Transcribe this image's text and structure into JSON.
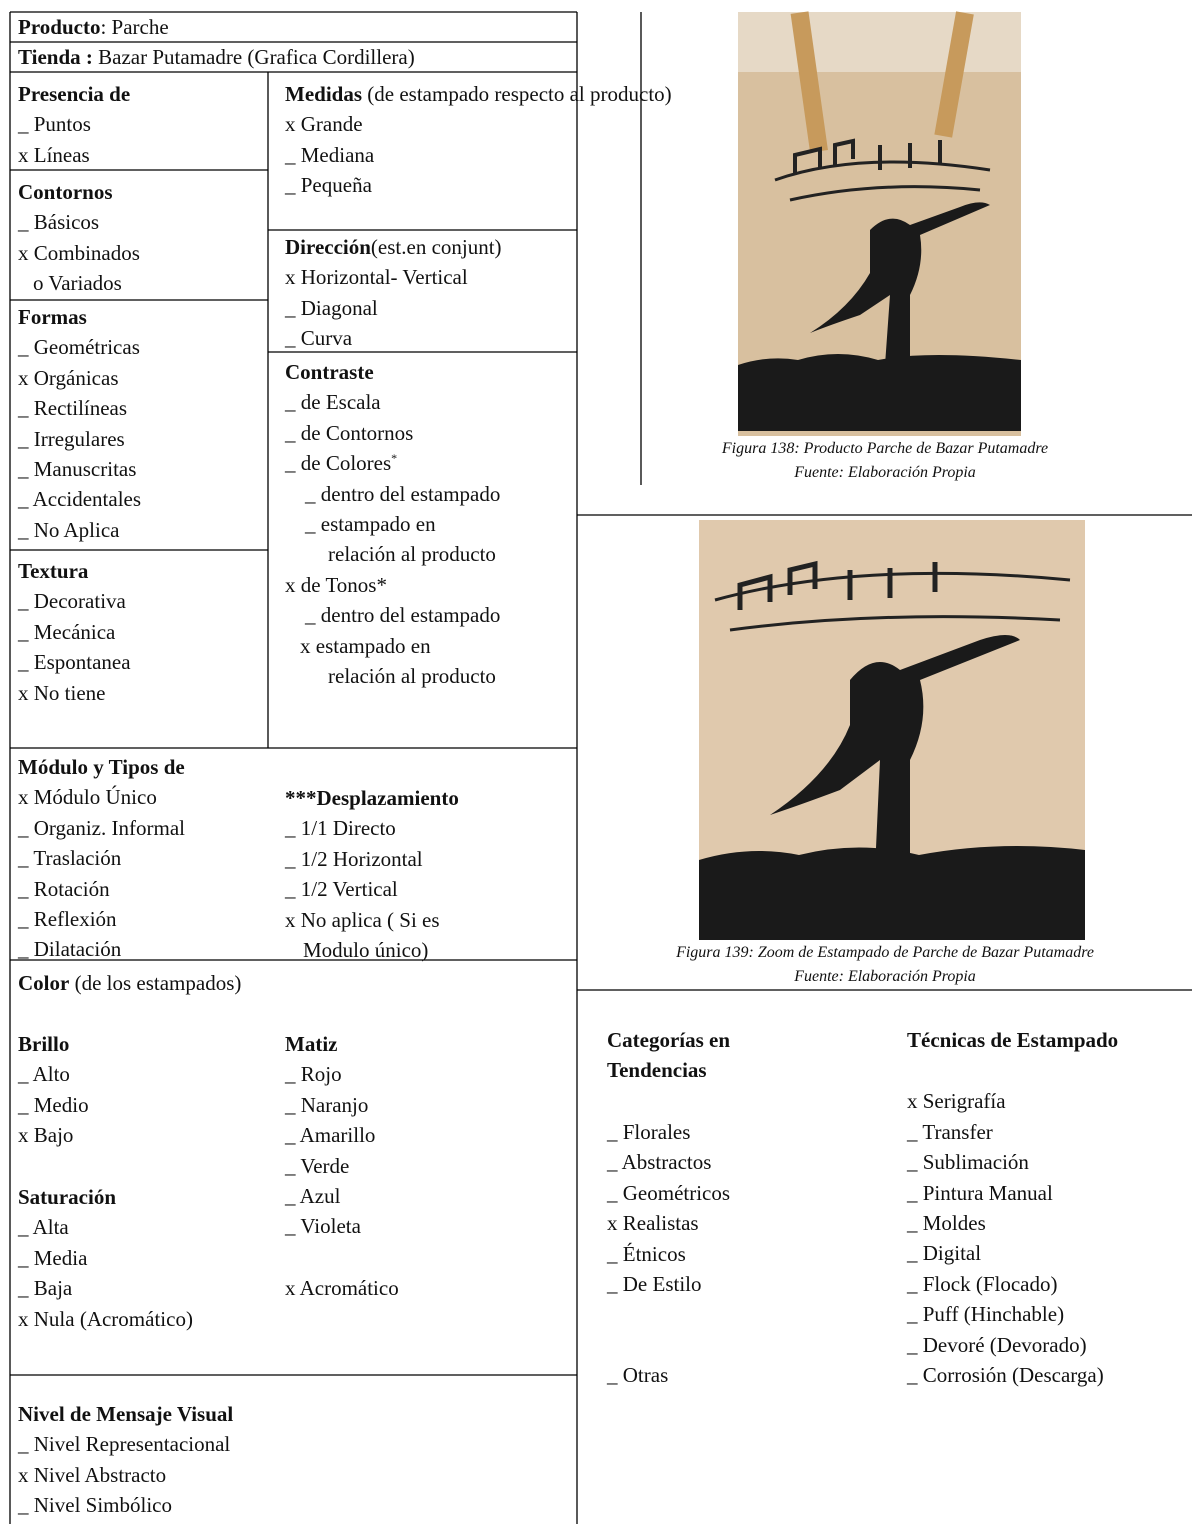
{
  "product": {
    "label": "Producto",
    "value": ": Parche"
  },
  "store": {
    "label": "Tienda :",
    "value": " Bazar Putamadre (Grafica Cordillera)"
  },
  "presence": {
    "title": "Presencia de",
    "items": [
      "_ Puntos",
      "x Líneas"
    ]
  },
  "contours": {
    "title": "Contornos",
    "items": [
      "_ Básicos",
      "x Combinados",
      "o Variados"
    ]
  },
  "shapes": {
    "title": "Formas",
    "items": [
      "_ Geométricas",
      "x Orgánicas",
      "_ Rectilíneas",
      "_ Irregulares",
      "_ Manuscritas",
      "_ Accidentales",
      "_ No Aplica"
    ]
  },
  "texture": {
    "title": "Textura",
    "items": [
      "_ Decorativa",
      "_ Mecánica",
      "_ Espontanea",
      "x No tiene"
    ]
  },
  "measures": {
    "title": "Medidas",
    "note": " (de estampado respecto al producto)",
    "items": [
      "x Grande",
      "_ Mediana",
      "_ Pequeña"
    ]
  },
  "direction": {
    "title": "Dirección",
    "note": "(est.en conjunt)",
    "items": [
      "x Horizontal- Vertical",
      "_ Diagonal",
      "_ Curva"
    ]
  },
  "contrast": {
    "title": "Contraste",
    "items": [
      "_ de Escala",
      "_ de Contornos",
      {
        "text": "_ de Colores",
        "sup": "*"
      },
      "_ dentro del estampado",
      "_ estampado en",
      "relación al producto",
      "x de Tonos*",
      "_ dentro del estampado",
      "x estampado en",
      "relación al producto"
    ]
  },
  "module": {
    "title": "Módulo y Tipos de",
    "types": [
      "x Módulo Único",
      "_ Organiz. Informal",
      "_ Traslación",
      "_ Rotación",
      "_ Reflexión",
      "_ Dilatación"
    ],
    "displacement_title": "***Desplazamiento",
    "displacement": [
      "_ 1/1 Directo",
      "_ 1/2 Horizontal",
      "_ 1/2 Vertical",
      "x No aplica ( Si es",
      "Modulo único)"
    ]
  },
  "color": {
    "title": "Color",
    "note": " (de los estampados)",
    "brightness": {
      "title": "Brillo",
      "items": [
        "_ Alto",
        "_ Medio",
        "x Bajo"
      ]
    },
    "saturation": {
      "title": "Saturación",
      "items": [
        "_ Alta",
        "_ Media",
        "_ Baja",
        "x Nula (Acromático)"
      ]
    },
    "hue": {
      "title": "Matiz",
      "items": [
        "_ Rojo",
        "_ Naranjo",
        "_ Amarillo",
        "_ Verde",
        "_ Azul",
        "_ Violeta",
        "x Acromático"
      ]
    }
  },
  "message": {
    "title": "Nivel de Mensaje Visual",
    "items": [
      "_ Nivel Representacional",
      "x Nivel Abstracto",
      "_ Nivel Simbólico"
    ]
  },
  "figures": [
    {
      "caption": "Figura 138: Producto Parche de Bazar Putamadre",
      "source": "Fuente: Elaboración Propia"
    },
    {
      "caption": "Figura 139: Zoom de Estampado de Parche de Bazar Putamadre",
      "source": "Fuente: Elaboración Propia"
    }
  ],
  "trends": {
    "title": "Categorías en Tendencias",
    "items": [
      "_ Florales",
      "_ Abstractos",
      "_ Geométricos",
      "x Realistas",
      "_ Étnicos",
      "_ De Estilo",
      "_ Otras"
    ]
  },
  "techniques": {
    "title": "Técnicas de Estampado",
    "items": [
      "x Serigrafía",
      "_ Transfer",
      "_ Sublimación",
      "_ Pintura Manual",
      "_ Moldes",
      "_ Digital",
      "_ Flock (Flocado)",
      "_ Puff (Hinchable)",
      "_ Devoré (Devorado)",
      "_ Corrosión (Descarga)"
    ]
  }
}
